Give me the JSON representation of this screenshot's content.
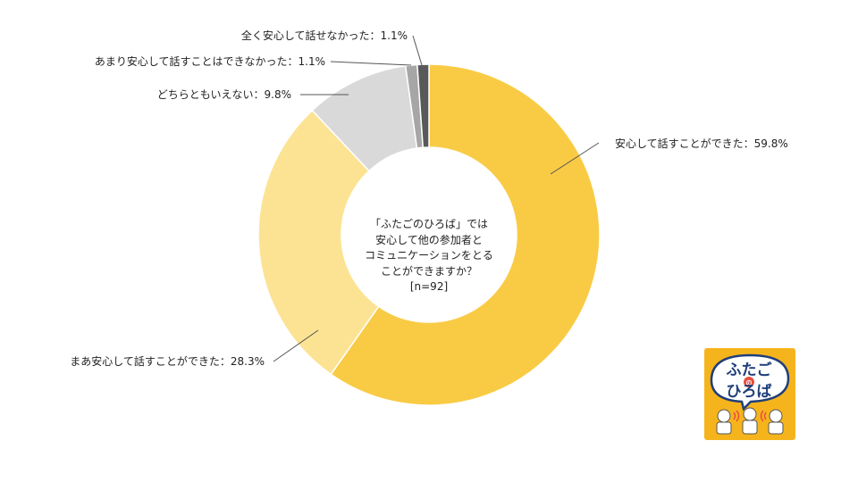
{
  "chart_data": {
    "type": "pie",
    "donut": true,
    "total_n": 92,
    "center_title_lines": [
      "「ふたごのひろば」では",
      "安心して他の参加者と",
      "コミュニケーションをとる",
      "ことができますか？",
      "[n=92]"
    ],
    "slices": [
      {
        "label": "安心して話すことができた",
        "value": 59.8,
        "display": "安心して話すことができた：59.8%",
        "color": "#F9CB45"
      },
      {
        "label": "まあ安心して話すことができた",
        "value": 28.3,
        "display": "まあ安心して話すことができた：28.3%",
        "color": "#FCE394"
      },
      {
        "label": "どちらともいえない",
        "value": 9.8,
        "display": "どちらともいえない：9.8%",
        "color": "#D9D9D9"
      },
      {
        "label": "あまり安心して話すことはできなかった",
        "value": 1.1,
        "display": "あまり安心して話すことはできなかった：1.1%",
        "color": "#A6A6A6"
      },
      {
        "label": "全く安心して話せなかった",
        "value": 1.1,
        "display": "全く安心して話せなかった：1.1%",
        "color": "#595959"
      }
    ]
  },
  "logo": {
    "lines": [
      "ふたご",
      "の",
      "ひろば"
    ],
    "bg_color": "#F6B41C"
  }
}
